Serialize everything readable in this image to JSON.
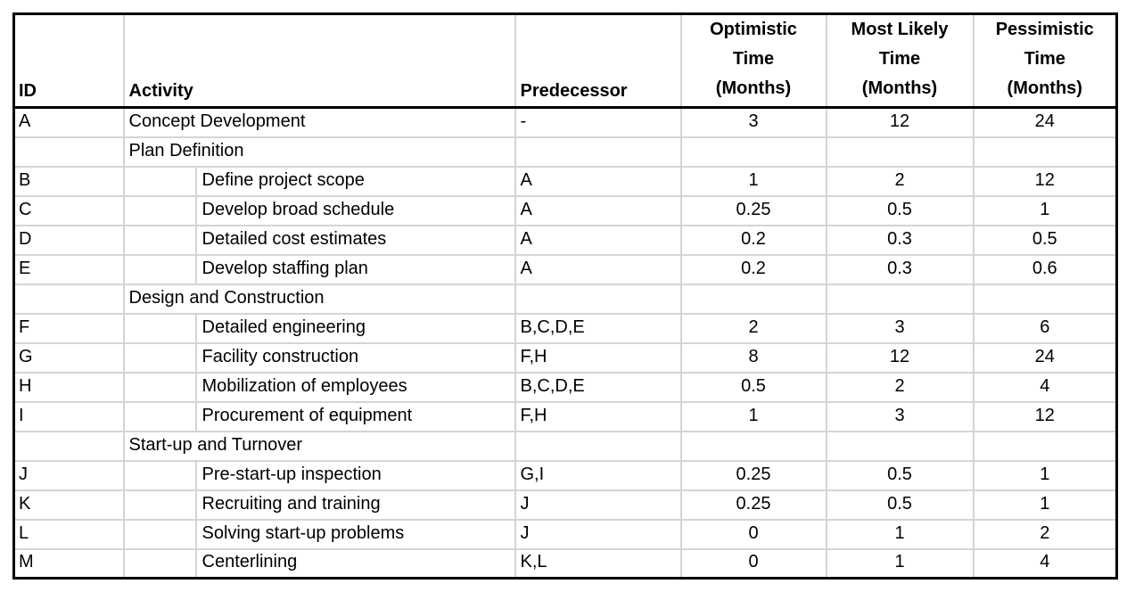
{
  "colors": {
    "outer_border": "#000000",
    "gridline": "#d4d4d4",
    "text": "#000000",
    "background": "#ffffff"
  },
  "header": {
    "id": "ID",
    "activity": "Activity",
    "predecessor": "Predecessor",
    "optimistic": "Optimistic\nTime\n(Months)",
    "most_likely": "Most Likely\nTime\n(Months)",
    "pessimistic": "Pessimistic\nTime\n(Months)"
  },
  "rows": [
    {
      "id": "A",
      "activity": "Concept Development",
      "indent": false,
      "predecessor": "-",
      "optimistic": "3",
      "most_likely": "12",
      "pessimistic": "24"
    },
    {
      "id": "",
      "activity": "Plan Definition",
      "indent": false,
      "predecessor": "",
      "optimistic": "",
      "most_likely": "",
      "pessimistic": ""
    },
    {
      "id": "B",
      "activity": "Define project scope",
      "indent": true,
      "predecessor": "A",
      "optimistic": "1",
      "most_likely": "2",
      "pessimistic": "12"
    },
    {
      "id": "C",
      "activity": "Develop broad schedule",
      "indent": true,
      "predecessor": "A",
      "optimistic": "0.25",
      "most_likely": "0.5",
      "pessimistic": "1"
    },
    {
      "id": "D",
      "activity": "Detailed cost estimates",
      "indent": true,
      "predecessor": "A",
      "optimistic": "0.2",
      "most_likely": "0.3",
      "pessimistic": "0.5"
    },
    {
      "id": "E",
      "activity": "Develop staffing plan",
      "indent": true,
      "predecessor": "A",
      "optimistic": "0.2",
      "most_likely": "0.3",
      "pessimistic": "0.6"
    },
    {
      "id": "",
      "activity": "Design and Construction",
      "indent": false,
      "predecessor": "",
      "optimistic": "",
      "most_likely": "",
      "pessimistic": ""
    },
    {
      "id": "F",
      "activity": "Detailed engineering",
      "indent": true,
      "predecessor": "B,C,D,E",
      "optimistic": "2",
      "most_likely": "3",
      "pessimistic": "6"
    },
    {
      "id": "G",
      "activity": "Facility construction",
      "indent": true,
      "predecessor": "F,H",
      "optimistic": "8",
      "most_likely": "12",
      "pessimistic": "24"
    },
    {
      "id": "H",
      "activity": "Mobilization of employees",
      "indent": true,
      "predecessor": "B,C,D,E",
      "optimistic": "0.5",
      "most_likely": "2",
      "pessimistic": "4"
    },
    {
      "id": "I",
      "activity": "Procurement of equipment",
      "indent": true,
      "predecessor": "F,H",
      "optimistic": "1",
      "most_likely": "3",
      "pessimistic": "12"
    },
    {
      "id": "",
      "activity": "Start-up and Turnover",
      "indent": false,
      "predecessor": "",
      "optimistic": "",
      "most_likely": "",
      "pessimistic": ""
    },
    {
      "id": "J",
      "activity": "Pre-start-up inspection",
      "indent": true,
      "predecessor": "G,I",
      "optimistic": "0.25",
      "most_likely": "0.5",
      "pessimistic": "1"
    },
    {
      "id": "K",
      "activity": "Recruiting and training",
      "indent": true,
      "predecessor": "J",
      "optimistic": "0.25",
      "most_likely": "0.5",
      "pessimistic": "1"
    },
    {
      "id": "L",
      "activity": "Solving start-up problems",
      "indent": true,
      "predecessor": "J",
      "optimistic": "0",
      "most_likely": "1",
      "pessimistic": "2"
    },
    {
      "id": "M",
      "activity": "Centerlining",
      "indent": true,
      "predecessor": "K,L",
      "optimistic": "0",
      "most_likely": "1",
      "pessimistic": "4"
    }
  ]
}
